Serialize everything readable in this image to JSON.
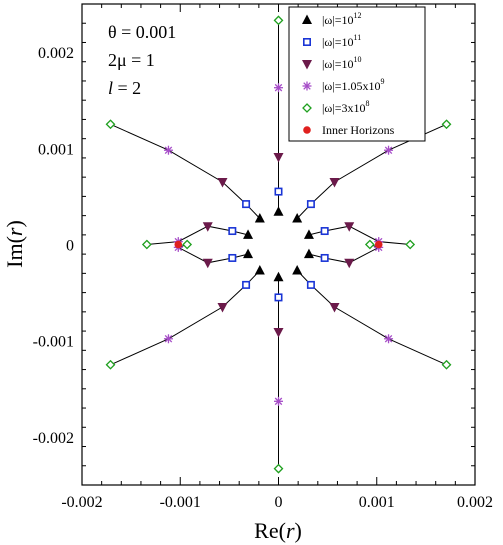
{
  "chart_data": {
    "type": "scatter",
    "title": "",
    "xlabel": "Re(r)",
    "ylabel": "Im(r)",
    "xlim": [
      -0.002,
      0.002
    ],
    "ylim": [
      -0.0025,
      0.0025
    ],
    "x_ticks": [
      "-0.002",
      "-0.001",
      "0",
      "0.001",
      "0.002"
    ],
    "y_ticks": [
      "-0.002",
      "-0.001",
      "0",
      "0.001",
      "0.002"
    ],
    "annotations": [
      "θ = 0.001",
      "2μ = 1",
      "l = 2"
    ],
    "legend_position": "top-right",
    "series": [
      {
        "name": "|ω|=10^12",
        "marker": "triangle-up",
        "color": "#000000",
        "points": [
          [
            0.0,
            0.00034
          ],
          [
            0.0,
            -0.00034
          ],
          [
            -0.00019,
            0.00027
          ],
          [
            0.00019,
            0.00027
          ],
          [
            -0.00019,
            -0.00027
          ],
          [
            0.00019,
            -0.00027
          ],
          [
            -0.00031,
            0.0001
          ],
          [
            0.00031,
            0.0001
          ],
          [
            -0.00031,
            -0.0001
          ],
          [
            0.00031,
            -0.0001
          ]
        ]
      },
      {
        "name": "|ω|=10^11",
        "marker": "square",
        "color": "#1a35d6",
        "points": [
          [
            0.0,
            0.00055
          ],
          [
            0.0,
            -0.00055
          ],
          [
            -0.00033,
            0.00042
          ],
          [
            0.00033,
            0.00042
          ],
          [
            -0.00033,
            -0.00042
          ],
          [
            0.00033,
            -0.00042
          ],
          [
            -0.00047,
            0.00014
          ],
          [
            0.00047,
            0.00014
          ],
          [
            -0.00047,
            -0.00014
          ],
          [
            0.00047,
            -0.00014
          ]
        ]
      },
      {
        "name": "|ω|=10^10",
        "marker": "triangle-down",
        "color": "#6b1a4a",
        "points": [
          [
            0.0,
            0.00091
          ],
          [
            0.0,
            -0.00091
          ],
          [
            -0.00057,
            0.00065
          ],
          [
            0.00057,
            0.00065
          ],
          [
            -0.00057,
            -0.00065
          ],
          [
            0.00057,
            -0.00065
          ],
          [
            -0.00072,
            0.00019
          ],
          [
            0.00072,
            0.00019
          ],
          [
            -0.00072,
            -0.00019
          ],
          [
            0.00072,
            -0.00019
          ]
        ]
      },
      {
        "name": "|ω|=1.05x10^9",
        "marker": "star",
        "color": "#a64dc8",
        "points": [
          [
            0.0,
            0.00163
          ],
          [
            0.0,
            -0.00163
          ],
          [
            -0.00112,
            0.00098
          ],
          [
            0.00112,
            0.00098
          ],
          [
            -0.00112,
            -0.00098
          ],
          [
            0.00112,
            -0.00098
          ],
          [
            -0.00102,
            3e-05
          ],
          [
            -0.00102,
            -3e-05
          ],
          [
            0.00102,
            3e-05
          ],
          [
            0.00102,
            -3e-05
          ]
        ]
      },
      {
        "name": "|ω|=3x10^8",
        "marker": "diamond",
        "color": "#20a020",
        "points": [
          [
            0.0,
            0.00233
          ],
          [
            0.0,
            -0.00233
          ],
          [
            -0.00171,
            0.00125
          ],
          [
            0.00171,
            0.00125
          ],
          [
            -0.00171,
            -0.00125
          ],
          [
            0.00171,
            -0.00125
          ],
          [
            -0.00134,
            0.0
          ],
          [
            0.00134,
            0.0
          ],
          [
            -0.00093,
            0.0
          ],
          [
            0.00093,
            0.0
          ]
        ]
      },
      {
        "name": "Inner Horizons",
        "marker": "circle",
        "color": "#e0201e",
        "points": [
          [
            -0.00102,
            0.0
          ],
          [
            0.00102,
            0.0
          ]
        ]
      }
    ],
    "lines": [
      [
        [
          0.0,
          0.00034
        ],
        [
          0.0,
          0.00055
        ],
        [
          0.0,
          0.00091
        ],
        [
          0.0,
          0.00163
        ],
        [
          0.0,
          0.00233
        ]
      ],
      [
        [
          0.0,
          -0.00034
        ],
        [
          0.0,
          -0.00055
        ],
        [
          0.0,
          -0.00091
        ],
        [
          0.0,
          -0.00163
        ],
        [
          0.0,
          -0.00233
        ]
      ],
      [
        [
          -0.00019,
          0.00027
        ],
        [
          -0.00033,
          0.00042
        ],
        [
          -0.00057,
          0.00065
        ],
        [
          -0.00112,
          0.00098
        ],
        [
          -0.00171,
          0.00125
        ]
      ],
      [
        [
          0.00019,
          0.00027
        ],
        [
          0.00033,
          0.00042
        ],
        [
          0.00057,
          0.00065
        ],
        [
          0.00112,
          0.00098
        ],
        [
          0.00171,
          0.00125
        ]
      ],
      [
        [
          -0.00019,
          -0.00027
        ],
        [
          -0.00033,
          -0.00042
        ],
        [
          -0.00057,
          -0.00065
        ],
        [
          -0.00112,
          -0.00098
        ],
        [
          -0.00171,
          -0.00125
        ]
      ],
      [
        [
          0.00019,
          -0.00027
        ],
        [
          0.00033,
          -0.00042
        ],
        [
          0.00057,
          -0.00065
        ],
        [
          0.00112,
          -0.00098
        ],
        [
          0.00171,
          -0.00125
        ]
      ],
      [
        [
          -0.00031,
          0.0001
        ],
        [
          -0.00047,
          0.00014
        ],
        [
          -0.00072,
          0.00019
        ],
        [
          -0.00102,
          3e-05
        ],
        [
          -0.00134,
          0.0
        ]
      ],
      [
        [
          -0.00031,
          -0.0001
        ],
        [
          -0.00047,
          -0.00014
        ],
        [
          -0.00072,
          -0.00019
        ],
        [
          -0.00102,
          -3e-05
        ],
        [
          -0.00093,
          0.0
        ]
      ],
      [
        [
          0.00031,
          0.0001
        ],
        [
          0.00047,
          0.00014
        ],
        [
          0.00072,
          0.00019
        ],
        [
          0.00102,
          3e-05
        ],
        [
          0.00134,
          0.0
        ]
      ],
      [
        [
          0.00031,
          -0.0001
        ],
        [
          0.00047,
          -0.00014
        ],
        [
          0.00072,
          -0.00019
        ],
        [
          0.00102,
          -3e-05
        ],
        [
          0.00093,
          0.0
        ]
      ]
    ]
  }
}
